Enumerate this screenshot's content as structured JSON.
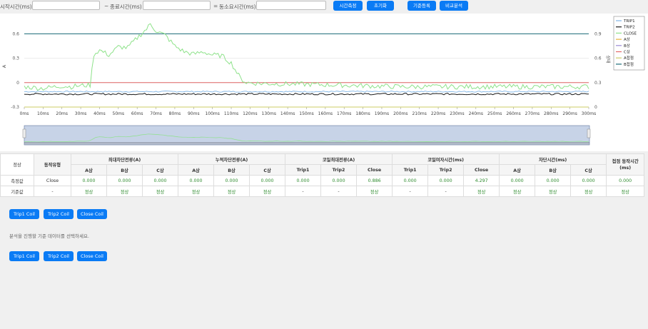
{
  "toolbar": {
    "start_label": "시작시간(ms) :",
    "tilde": "~",
    "end_label": "종료시간(ms) :",
    "eq": "=",
    "duration_label": "동소요시간(ms) :",
    "start_value": "",
    "end_value": "",
    "duration_value": "",
    "btn_time_measure": "시간측정",
    "btn_reset": "초기화",
    "btn_register": "기준등록",
    "btn_compare": "비교분석"
  },
  "chart_data": {
    "type": "line",
    "ylabel": "A",
    "y2label": "상태",
    "yticks": [
      "0.6",
      "0.3",
      "0",
      "-0.3"
    ],
    "y2ticks": [
      "0.9",
      "0.6",
      "0.3",
      "0"
    ],
    "ylim": [
      -0.3,
      0.7
    ],
    "xlim": [
      0,
      300
    ],
    "xticks": [
      "0ms",
      "10ms",
      "20ms",
      "30ms",
      "40ms",
      "50ms",
      "60ms",
      "70ms",
      "80ms",
      "90ms",
      "100ms",
      "110ms",
      "120ms",
      "130ms",
      "140ms",
      "150ms",
      "160ms",
      "170ms",
      "180ms",
      "190ms",
      "200ms",
      "210ms",
      "220ms",
      "230ms",
      "240ms",
      "250ms",
      "260ms",
      "270ms",
      "280ms",
      "290ms",
      "300ms"
    ],
    "legend_position": "top-right",
    "series": [
      {
        "name": "TRIP1",
        "color": "#7fb5e6"
      },
      {
        "name": "TRIP2",
        "color": "#1a1a1a"
      },
      {
        "name": "CLOSE",
        "color": "#8ee28a"
      },
      {
        "name": "A상",
        "color": "#e6b23a"
      },
      {
        "name": "B상",
        "color": "#9b88d6"
      },
      {
        "name": "C상",
        "color": "#e26767"
      },
      {
        "name": "A접점",
        "color": "#cccc66"
      },
      {
        "name": "B접점",
        "color": "#1b6b7a"
      }
    ],
    "close_level_points": [
      [
        0,
        -0.05
      ],
      [
        10,
        -0.07
      ],
      [
        20,
        -0.04
      ],
      [
        25,
        -0.05
      ],
      [
        28,
        -0.04
      ],
      [
        35,
        -0.03
      ],
      [
        37,
        0.35
      ],
      [
        40,
        0.4
      ],
      [
        45,
        0.34
      ],
      [
        50,
        0.44
      ],
      [
        55,
        0.43
      ],
      [
        60,
        0.55
      ],
      [
        65,
        0.66
      ],
      [
        67,
        0.72
      ],
      [
        70,
        0.64
      ],
      [
        75,
        0.58
      ],
      [
        80,
        0.45
      ],
      [
        85,
        0.38
      ],
      [
        90,
        0.35
      ],
      [
        95,
        0.38
      ],
      [
        100,
        0.34
      ],
      [
        105,
        0.33
      ],
      [
        110,
        0.24
      ],
      [
        115,
        0.05
      ],
      [
        118,
        0
      ],
      [
        125,
        -0.01
      ],
      [
        150,
        -0.02
      ],
      [
        200,
        -0.05
      ],
      [
        250,
        -0.05
      ],
      [
        300,
        -0.05
      ]
    ],
    "trip2_level": -0.14,
    "trip1_level": -0.11,
    "c_phase_level": 0,
    "b_contact_level": 0.6,
    "a_contact_level": -0.3
  },
  "table": {
    "status": "정상",
    "op_type_header": "동작유형",
    "groups": [
      "최대차단전류(A)",
      "누적차단전류(A)",
      "코일최대전류(A)",
      "코일여자시간(ms)",
      "차단시간(ms)"
    ],
    "last_header": "접점 동작시간(ms)",
    "sub_headers": [
      "A상",
      "B상",
      "C상",
      "A상",
      "B상",
      "C상",
      "Trip1",
      "Trip2",
      "Close",
      "Trip1",
      "Trip2",
      "Close",
      "A상",
      "B상",
      "C상"
    ],
    "rows": [
      {
        "label": "측정값",
        "op": "Close",
        "cells": [
          "0.000",
          "0.000",
          "0.000",
          "0.000",
          "0.000",
          "0.000",
          "0.000",
          "0.000",
          "0.886",
          "0.000",
          "0.000",
          "4.297",
          "0.000",
          "0.000",
          "0.000",
          "0.000"
        ]
      },
      {
        "label": "기준값",
        "op": "-",
        "cells": [
          "정상",
          "정상",
          "정상",
          "정상",
          "정상",
          "정상",
          "-",
          "-",
          "정상",
          "-",
          "-",
          "정상",
          "정상",
          "정상",
          "정상",
          "정상"
        ]
      }
    ]
  },
  "coil_buttons_top": [
    "Trip1 Coil",
    "Trip2 Coil",
    "Close Coil"
  ],
  "hint_text": "분석을 진행할 기준 데이터를 선택하세요.",
  "coil_buttons_bottom": [
    "Trip1 Coil",
    "Trip2 Coil",
    "Close Coil"
  ]
}
